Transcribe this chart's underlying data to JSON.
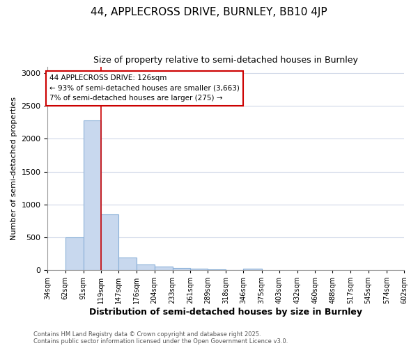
{
  "title1": "44, APPLECROSS DRIVE, BURNLEY, BB10 4JP",
  "title2": "Size of property relative to semi-detached houses in Burnley",
  "xlabel": "Distribution of semi-detached houses by size in Burnley",
  "ylabel": "Number of semi-detached properties",
  "footer1": "Contains HM Land Registry data © Crown copyright and database right 2025.",
  "footer2": "Contains public sector information licensed under the Open Government Licence v3.0.",
  "annotation_title": "44 APPLECROSS DRIVE: 126sqm",
  "annotation_line2": "← 93% of semi-detached houses are smaller (3,663)",
  "annotation_line3": "7% of semi-detached houses are larger (275) →",
  "bar_edges": [
    34,
    62,
    91,
    119,
    147,
    176,
    204,
    233,
    261,
    289,
    318,
    346,
    375,
    403,
    432,
    460,
    488,
    517,
    545,
    574,
    602
  ],
  "bar_heights": [
    0,
    500,
    2280,
    850,
    190,
    90,
    50,
    30,
    20,
    10,
    5,
    25,
    0,
    0,
    0,
    0,
    0,
    0,
    0,
    0
  ],
  "bar_color": "#c8d8ee",
  "bar_edge_color": "#8ab0d8",
  "redline_x": 119,
  "ylim": [
    0,
    3100
  ],
  "yticks": [
    0,
    500,
    1000,
    1500,
    2000,
    2500,
    3000
  ],
  "bg_color": "#ffffff",
  "plot_bg_color": "#ffffff",
  "grid_color": "#d0d8e8",
  "annotation_box_color": "#ffffff",
  "annotation_border_color": "#cc0000",
  "redline_color": "#cc0000",
  "title1_fontsize": 11,
  "title2_fontsize": 9
}
